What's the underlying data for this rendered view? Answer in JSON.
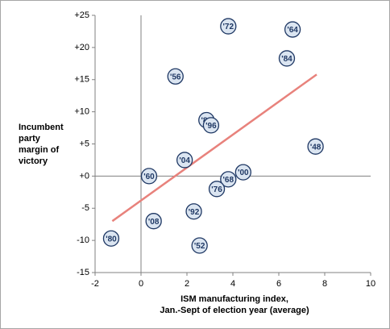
{
  "chart_data": {
    "type": "scatter",
    "y_label": [
      "Incumbent",
      "party",
      "margin of",
      "victory"
    ],
    "x_label": [
      "ISM manufacturing index,",
      "Jan.-Sept of election year (average)"
    ],
    "xlim": [
      -2,
      10
    ],
    "xticks": [
      -2,
      0,
      2,
      4,
      6,
      8,
      10
    ],
    "ylim": [
      -15,
      25
    ],
    "yticks": [
      {
        "value": 25,
        "label": "+25"
      },
      {
        "value": 20,
        "label": "+20"
      },
      {
        "value": 15,
        "label": "+15"
      },
      {
        "value": 10,
        "label": "+10"
      },
      {
        "value": 5,
        "label": "+5"
      },
      {
        "value": 0,
        "label": "+0"
      },
      -5,
      -10,
      -15
    ],
    "point_labels": [
      "'72",
      "'64",
      "'84",
      "'56",
      "'88",
      "'96",
      "'48",
      "'04",
      "'00",
      "'60",
      "'68",
      "'76",
      "'92",
      "'08",
      "'80",
      "'52"
    ],
    "x": [
      3.8,
      6.6,
      6.35,
      1.5,
      2.85,
      3.05,
      7.6,
      1.9,
      4.45,
      0.35,
      3.8,
      3.3,
      2.3,
      0.55,
      -1.3,
      2.55
    ],
    "values": [
      23.3,
      22.8,
      18.3,
      15.5,
      8.7,
      7.9,
      4.6,
      2.5,
      0.6,
      0,
      -0.5,
      -2,
      -5.5,
      -7,
      -9.7,
      -10.8
    ],
    "color": "#dbe5f1",
    "trendline": {
      "color": "#e8827c",
      "x": [
        -1.25,
        7.65
      ],
      "values": [
        -7,
        15.8
      ]
    }
  }
}
